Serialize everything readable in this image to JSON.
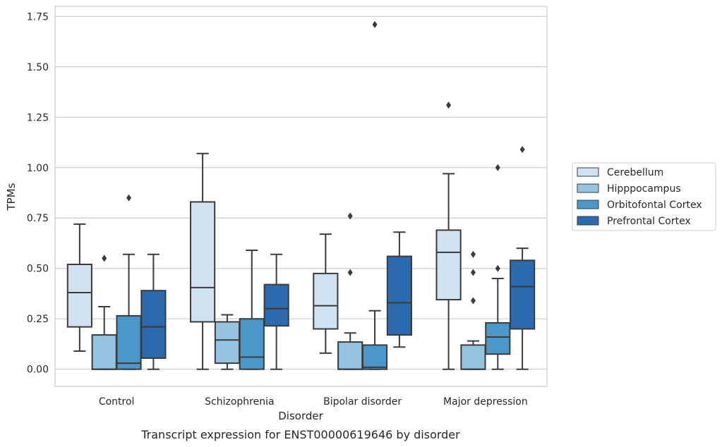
{
  "chart_data": {
    "type": "box",
    "title": "",
    "caption": "Transcript expression for ENST00000619646 by disorder",
    "xlabel": "Disorder",
    "ylabel": "TPMs",
    "ylim": [
      -0.085,
      1.8
    ],
    "yticks": [
      "0.00",
      "0.25",
      "0.50",
      "0.75",
      "1.00",
      "1.25",
      "1.50",
      "1.75"
    ],
    "grid": "horizontal",
    "legend_position": "right",
    "categories": [
      "Control",
      "Schizophrenia",
      "Bipolar disorder",
      "Major depression"
    ],
    "series": [
      {
        "name": "Cerebellum",
        "color": "#d0e1f2",
        "boxes": [
          {
            "whislo": 0.09,
            "q1": 0.21,
            "med": 0.38,
            "q3": 0.52,
            "whishi": 0.72,
            "fliers": []
          },
          {
            "whislo": 0.0,
            "q1": 0.235,
            "med": 0.405,
            "q3": 0.83,
            "whishi": 1.07,
            "fliers": []
          },
          {
            "whislo": 0.08,
            "q1": 0.2,
            "med": 0.315,
            "q3": 0.475,
            "whishi": 0.67,
            "fliers": []
          },
          {
            "whislo": 0.0,
            "q1": 0.345,
            "med": 0.58,
            "q3": 0.69,
            "whishi": 0.97,
            "fliers": [
              1.31
            ]
          }
        ]
      },
      {
        "name": "Hipppocampus",
        "color": "#94c4df",
        "boxes": [
          {
            "whislo": 0.0,
            "q1": 0.0,
            "med": 0.0,
            "q3": 0.17,
            "whishi": 0.31,
            "fliers": [
              0.55
            ]
          },
          {
            "whislo": 0.0,
            "q1": 0.03,
            "med": 0.145,
            "q3": 0.235,
            "whishi": 0.27,
            "fliers": []
          },
          {
            "whislo": 0.0,
            "q1": 0.0,
            "med": 0.0,
            "q3": 0.135,
            "whishi": 0.18,
            "fliers": [
              0.48,
              0.76
            ]
          },
          {
            "whislo": 0.0,
            "q1": 0.0,
            "med": 0.0,
            "q3": 0.12,
            "whishi": 0.14,
            "fliers": [
              0.34,
              0.48,
              0.57
            ]
          }
        ]
      },
      {
        "name": "Orbitofontal Cortex",
        "color": "#4a98c9",
        "boxes": [
          {
            "whislo": 0.0,
            "q1": 0.0,
            "med": 0.03,
            "q3": 0.265,
            "whishi": 0.57,
            "fliers": [
              0.85
            ]
          },
          {
            "whislo": 0.0,
            "q1": 0.0,
            "med": 0.06,
            "q3": 0.25,
            "whishi": 0.59,
            "fliers": []
          },
          {
            "whislo": 0.0,
            "q1": 0.0,
            "med": 0.01,
            "q3": 0.12,
            "whishi": 0.29,
            "fliers": [
              1.71
            ]
          },
          {
            "whislo": 0.0,
            "q1": 0.075,
            "med": 0.16,
            "q3": 0.23,
            "whishi": 0.45,
            "fliers": [
              0.5,
              1.0
            ]
          }
        ]
      },
      {
        "name": "Prefrontal Cortex",
        "color": "#2a6aad",
        "boxes": [
          {
            "whislo": 0.0,
            "q1": 0.055,
            "med": 0.21,
            "q3": 0.39,
            "whishi": 0.57,
            "fliers": []
          },
          {
            "whislo": 0.0,
            "q1": 0.215,
            "med": 0.3,
            "q3": 0.42,
            "whishi": 0.57,
            "fliers": []
          },
          {
            "whislo": 0.11,
            "q1": 0.17,
            "med": 0.33,
            "q3": 0.56,
            "whishi": 0.68,
            "fliers": []
          },
          {
            "whislo": 0.0,
            "q1": 0.2,
            "med": 0.41,
            "q3": 0.54,
            "whishi": 0.6,
            "fliers": [
              1.09
            ]
          }
        ]
      }
    ]
  }
}
